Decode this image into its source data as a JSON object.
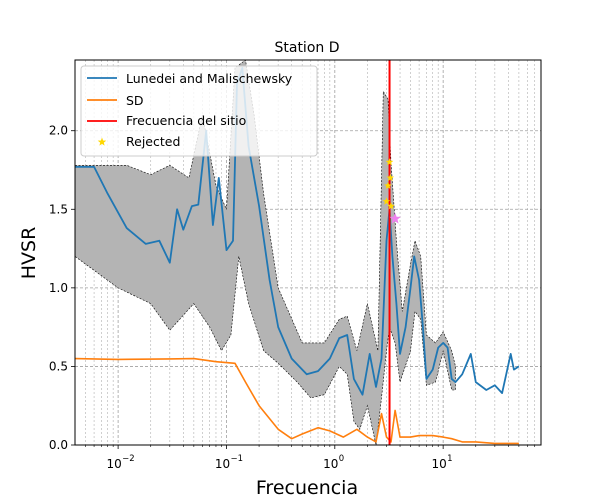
{
  "chart_data": {
    "type": "line",
    "title": "Station D",
    "xlabel": "Frecuencia",
    "ylabel": "HVSR",
    "xscale": "log",
    "xlim": [
      0.004,
      80
    ],
    "ylim": [
      0,
      2.45
    ],
    "grid": "both-dashed",
    "legend_position": "top-left",
    "x_tick_labels": [
      {
        "value": 0.01,
        "label": "10"
      },
      {
        "value": 0.1,
        "label": "10"
      },
      {
        "value": 1,
        "label": "10"
      },
      {
        "value": 10,
        "label": "10"
      }
    ],
    "x_tick_exponents": [
      "−2",
      "−1",
      "0",
      "1"
    ],
    "y_ticks": [
      0.0,
      0.5,
      1.0,
      1.5,
      2.0
    ],
    "y_tick_labels": [
      "0.0",
      "0.5",
      "1.0",
      "1.5",
      "2.0"
    ],
    "series": [
      {
        "name": "Lunedei and Malischewsky",
        "color": "#1f77b4",
        "points": [
          [
            0.004,
            1.77
          ],
          [
            0.006,
            1.77
          ],
          [
            0.008,
            1.6
          ],
          [
            0.012,
            1.38
          ],
          [
            0.018,
            1.28
          ],
          [
            0.024,
            1.3
          ],
          [
            0.03,
            1.16
          ],
          [
            0.035,
            1.5
          ],
          [
            0.04,
            1.37
          ],
          [
            0.048,
            1.52
          ],
          [
            0.055,
            1.53
          ],
          [
            0.065,
            2.0
          ],
          [
            0.075,
            1.4
          ],
          [
            0.085,
            1.7
          ],
          [
            0.1,
            1.24
          ],
          [
            0.115,
            1.3
          ],
          [
            0.125,
            2.3
          ],
          [
            0.14,
            2.4
          ],
          [
            0.16,
            1.9
          ],
          [
            0.2,
            1.52
          ],
          [
            0.25,
            1.05
          ],
          [
            0.3,
            0.75
          ],
          [
            0.4,
            0.55
          ],
          [
            0.55,
            0.45
          ],
          [
            0.7,
            0.47
          ],
          [
            0.9,
            0.55
          ],
          [
            1.1,
            0.68
          ],
          [
            1.3,
            0.7
          ],
          [
            1.5,
            0.42
          ],
          [
            1.8,
            0.32
          ],
          [
            2.1,
            0.58
          ],
          [
            2.4,
            0.37
          ],
          [
            2.7,
            0.55
          ],
          [
            3.0,
            1.3
          ],
          [
            3.2,
            1.5
          ],
          [
            3.4,
            1.2
          ],
          [
            3.7,
            0.9
          ],
          [
            4.0,
            0.58
          ],
          [
            4.5,
            0.75
          ],
          [
            5.0,
            1.0
          ],
          [
            5.4,
            1.2
          ],
          [
            6.0,
            1.05
          ],
          [
            6.5,
            0.75
          ],
          [
            7.0,
            0.42
          ],
          [
            8.0,
            0.48
          ],
          [
            9.0,
            0.62
          ],
          [
            10.0,
            0.65
          ],
          [
            11.0,
            0.62
          ],
          [
            12.0,
            0.42
          ],
          [
            13.0,
            0.4
          ],
          [
            15.0,
            0.45
          ],
          [
            18.0,
            0.58
          ],
          [
            20.0,
            0.4
          ],
          [
            25.0,
            0.35
          ],
          [
            30.0,
            0.38
          ],
          [
            35.0,
            0.33
          ],
          [
            42.0,
            0.58
          ],
          [
            45.0,
            0.48
          ],
          [
            50.0,
            0.5
          ]
        ]
      },
      {
        "name": "SD",
        "color": "#ff7f0e",
        "points": [
          [
            0.004,
            0.55
          ],
          [
            0.01,
            0.545
          ],
          [
            0.03,
            0.548
          ],
          [
            0.05,
            0.55
          ],
          [
            0.08,
            0.53
          ],
          [
            0.12,
            0.52
          ],
          [
            0.15,
            0.4
          ],
          [
            0.2,
            0.25
          ],
          [
            0.3,
            0.1
          ],
          [
            0.4,
            0.04
          ],
          [
            0.5,
            0.07
          ],
          [
            0.7,
            0.11
          ],
          [
            0.9,
            0.09
          ],
          [
            1.2,
            0.05
          ],
          [
            1.6,
            0.1
          ],
          [
            2.0,
            0.05
          ],
          [
            2.4,
            0.02
          ],
          [
            2.7,
            0.2
          ],
          [
            3.0,
            0.05
          ],
          [
            3.3,
            0.02
          ],
          [
            3.6,
            0.22
          ],
          [
            4.0,
            0.05
          ],
          [
            5.0,
            0.05
          ],
          [
            6.0,
            0.06
          ],
          [
            8.0,
            0.06
          ],
          [
            10.0,
            0.05
          ],
          [
            12.0,
            0.04
          ],
          [
            15.0,
            0.02
          ],
          [
            20.0,
            0.02
          ],
          [
            30.0,
            0.01
          ],
          [
            50.0,
            0.01
          ]
        ]
      },
      {
        "name": "Frecuencia del sitio",
        "color": "#ff0000",
        "x": 3.2
      },
      {
        "name": "Rejected",
        "color": "#ffd700",
        "marker": "star",
        "points": [
          [
            3.0,
            1.55
          ],
          [
            3.1,
            1.65
          ],
          [
            3.2,
            1.8
          ],
          [
            3.25,
            1.7
          ],
          [
            3.3,
            1.52
          ]
        ]
      }
    ],
    "selected_peak": {
      "color": "#ee82ee",
      "marker": "star",
      "x": 3.6,
      "y": 1.44
    },
    "band": {
      "fill": "#b4b4b4",
      "edge": "#000000",
      "upper": [
        [
          0.004,
          1.78
        ],
        [
          0.008,
          1.78
        ],
        [
          0.012,
          1.78
        ],
        [
          0.02,
          1.72
        ],
        [
          0.03,
          1.78
        ],
        [
          0.045,
          1.7
        ],
        [
          0.06,
          2.1
        ],
        [
          0.08,
          1.65
        ],
        [
          0.1,
          1.5
        ],
        [
          0.12,
          2.4
        ],
        [
          0.15,
          2.45
        ],
        [
          0.18,
          2.1
        ],
        [
          0.22,
          1.6
        ],
        [
          0.3,
          1.0
        ],
        [
          0.5,
          0.65
        ],
        [
          0.8,
          0.65
        ],
        [
          1.1,
          0.8
        ],
        [
          1.3,
          0.82
        ],
        [
          1.6,
          0.6
        ],
        [
          2.0,
          0.9
        ],
        [
          2.5,
          0.6
        ],
        [
          2.8,
          2.25
        ],
        [
          3.1,
          2.2
        ],
        [
          3.3,
          1.8
        ],
        [
          3.7,
          1.3
        ],
        [
          4.2,
          0.85
        ],
        [
          5.0,
          1.15
        ],
        [
          5.5,
          1.3
        ],
        [
          6.2,
          1.2
        ],
        [
          7.0,
          0.7
        ],
        [
          8.5,
          0.65
        ],
        [
          10.0,
          0.72
        ],
        [
          12.0,
          0.6
        ],
        [
          13.0,
          0.5
        ]
      ],
      "lower": [
        [
          0.004,
          1.2
        ],
        [
          0.01,
          1.0
        ],
        [
          0.02,
          0.9
        ],
        [
          0.03,
          0.73
        ],
        [
          0.05,
          0.9
        ],
        [
          0.07,
          0.75
        ],
        [
          0.09,
          0.6
        ],
        [
          0.11,
          0.7
        ],
        [
          0.13,
          1.2
        ],
        [
          0.16,
          0.9
        ],
        [
          0.22,
          0.6
        ],
        [
          0.3,
          0.52
        ],
        [
          0.45,
          0.4
        ],
        [
          0.6,
          0.3
        ],
        [
          0.8,
          0.32
        ],
        [
          1.1,
          0.5
        ],
        [
          1.3,
          0.45
        ],
        [
          1.5,
          0.15
        ],
        [
          1.7,
          0.1
        ],
        [
          2.0,
          0.25
        ],
        [
          2.4,
          0.0
        ],
        [
          2.7,
          0.3
        ],
        [
          3.0,
          0.6
        ],
        [
          3.2,
          0.75
        ],
        [
          3.6,
          0.65
        ],
        [
          4.0,
          0.4
        ],
        [
          5.0,
          0.6
        ],
        [
          5.5,
          0.85
        ],
        [
          6.2,
          0.8
        ],
        [
          7.0,
          0.38
        ],
        [
          8.5,
          0.4
        ],
        [
          10.0,
          0.6
        ],
        [
          12.0,
          0.35
        ],
        [
          13.0,
          0.35
        ]
      ]
    }
  }
}
